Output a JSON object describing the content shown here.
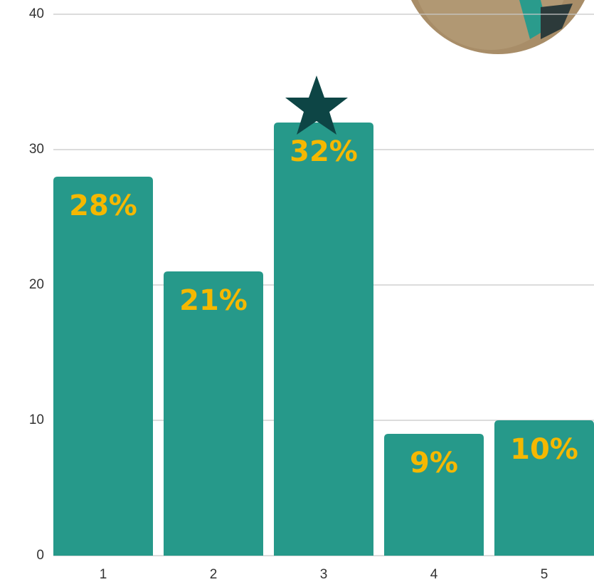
{
  "chart_data": {
    "type": "bar",
    "categories": [
      "1",
      "2",
      "3",
      "4",
      "5"
    ],
    "values": [
      28,
      21,
      32,
      9,
      10
    ],
    "value_labels": [
      "28%",
      "21%",
      "32%",
      "9%",
      "10%"
    ],
    "color": "#26998a",
    "label_color": "#f5b800",
    "ylim": [
      0,
      40
    ],
    "yticks": [
      0,
      10,
      20,
      30,
      40
    ],
    "grid": true
  }
}
